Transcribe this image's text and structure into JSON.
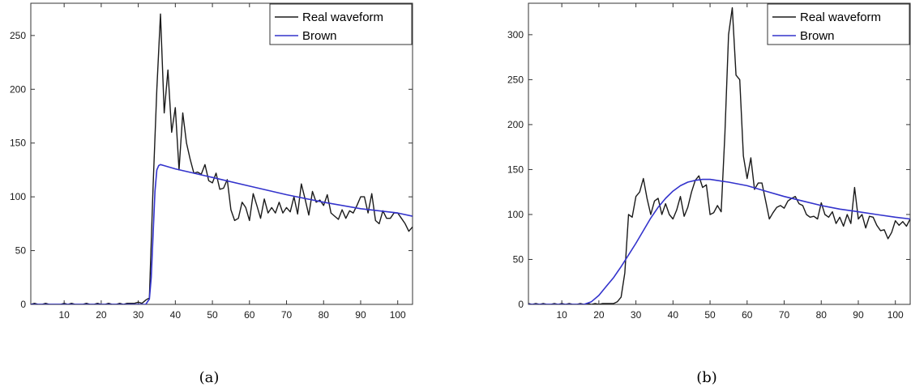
{
  "chart_data": [
    {
      "type": "line",
      "caption": "(a)",
      "xlim": [
        1,
        104
      ],
      "ylim": [
        0,
        280
      ],
      "xticks": [
        10,
        20,
        30,
        40,
        50,
        60,
        70,
        80,
        90,
        100
      ],
      "yticks": [
        0,
        50,
        100,
        150,
        200,
        250
      ],
      "legend_position": "top-right",
      "series": [
        {
          "name": "Real waveform",
          "color": "#1a1a1a",
          "x": [
            1,
            2,
            3,
            4,
            5,
            6,
            7,
            8,
            9,
            10,
            11,
            12,
            13,
            14,
            15,
            16,
            17,
            18,
            19,
            20,
            21,
            22,
            23,
            24,
            25,
            26,
            27,
            28,
            29,
            30,
            31,
            32,
            33,
            34,
            35,
            36,
            37,
            38,
            39,
            40,
            41,
            42,
            43,
            44,
            45,
            46,
            47,
            48,
            49,
            50,
            51,
            52,
            53,
            54,
            55,
            56,
            57,
            58,
            59,
            60,
            61,
            62,
            63,
            64,
            65,
            66,
            67,
            68,
            69,
            70,
            71,
            72,
            73,
            74,
            75,
            76,
            77,
            78,
            79,
            80,
            81,
            82,
            83,
            84,
            85,
            86,
            87,
            88,
            89,
            90,
            91,
            92,
            93,
            94,
            95,
            96,
            97,
            98,
            99,
            100,
            101,
            102,
            103,
            104
          ],
          "y": [
            0,
            1,
            0,
            0,
            1,
            0,
            0,
            0,
            0,
            1,
            0,
            1,
            0,
            0,
            0,
            1,
            0,
            0,
            1,
            0,
            0,
            1,
            0,
            0,
            1,
            0,
            1,
            1,
            1,
            2,
            1,
            4,
            6,
            110,
            200,
            270,
            178,
            218,
            160,
            183,
            125,
            178,
            150,
            135,
            122,
            123,
            121,
            130,
            115,
            113,
            122,
            107,
            108,
            116,
            88,
            78,
            80,
            95,
            90,
            78,
            103,
            92,
            80,
            98,
            85,
            90,
            85,
            95,
            85,
            90,
            86,
            100,
            84,
            112,
            98,
            83,
            105,
            95,
            97,
            92,
            102,
            85,
            82,
            79,
            88,
            80,
            87,
            85,
            92,
            100,
            100,
            85,
            103,
            78,
            75,
            87,
            80,
            80,
            85,
            85,
            80,
            75,
            68,
            72
          ]
        },
        {
          "name": "Brown",
          "color": "#3333cc",
          "x": [
            1,
            31,
            32,
            33,
            33.5,
            34,
            34.5,
            35,
            35.5,
            36,
            37,
            40,
            50,
            60,
            70,
            80,
            90,
            100,
            104
          ],
          "y": [
            0,
            0,
            0,
            5,
            25,
            65,
            105,
            125,
            129,
            130,
            129,
            126,
            118,
            110,
            102,
            95,
            89,
            85,
            82
          ]
        }
      ]
    },
    {
      "type": "line",
      "caption": "(b)",
      "xlim": [
        1,
        104
      ],
      "ylim": [
        0,
        335
      ],
      "xticks": [
        10,
        20,
        30,
        40,
        50,
        60,
        70,
        80,
        90,
        100
      ],
      "yticks": [
        0,
        50,
        100,
        150,
        200,
        250,
        300
      ],
      "legend_position": "top-right",
      "series": [
        {
          "name": "Real waveform",
          "color": "#1a1a1a",
          "x": [
            1,
            2,
            3,
            4,
            5,
            6,
            7,
            8,
            9,
            10,
            11,
            12,
            13,
            14,
            15,
            16,
            17,
            18,
            19,
            20,
            21,
            22,
            23,
            24,
            25,
            26,
            27,
            28,
            29,
            30,
            31,
            32,
            33,
            34,
            35,
            36,
            37,
            38,
            39,
            40,
            41,
            42,
            43,
            44,
            45,
            46,
            47,
            48,
            49,
            50,
            51,
            52,
            53,
            54,
            55,
            56,
            57,
            58,
            59,
            60,
            61,
            62,
            63,
            64,
            65,
            66,
            67,
            68,
            69,
            70,
            71,
            72,
            73,
            74,
            75,
            76,
            77,
            78,
            79,
            80,
            81,
            82,
            83,
            84,
            85,
            86,
            87,
            88,
            89,
            90,
            91,
            92,
            93,
            94,
            95,
            96,
            97,
            98,
            99,
            100,
            101,
            102,
            103,
            104
          ],
          "y": [
            1,
            0,
            1,
            0,
            1,
            0,
            0,
            1,
            0,
            1,
            0,
            1,
            0,
            0,
            1,
            0,
            1,
            0,
            1,
            0,
            1,
            1,
            1,
            1,
            3,
            8,
            35,
            100,
            97,
            120,
            125,
            140,
            118,
            100,
            115,
            118,
            100,
            112,
            100,
            95,
            105,
            120,
            98,
            108,
            125,
            138,
            143,
            130,
            133,
            100,
            102,
            110,
            103,
            190,
            300,
            330,
            255,
            250,
            165,
            140,
            163,
            128,
            135,
            135,
            115,
            95,
            102,
            108,
            110,
            107,
            115,
            118,
            120,
            112,
            110,
            100,
            97,
            98,
            95,
            113,
            100,
            97,
            103,
            90,
            97,
            87,
            100,
            90,
            130,
            95,
            100,
            85,
            98,
            97,
            88,
            82,
            83,
            73,
            80,
            93,
            88,
            92,
            87,
            95
          ]
        },
        {
          "name": "Brown",
          "color": "#3333cc",
          "x": [
            1,
            16,
            18,
            20,
            22,
            24,
            26,
            28,
            30,
            32,
            34,
            36,
            38,
            40,
            42,
            44,
            46,
            48,
            50,
            55,
            60,
            65,
            70,
            75,
            80,
            85,
            90,
            95,
            100,
            104
          ],
          "y": [
            0,
            0,
            3,
            10,
            20,
            30,
            42,
            55,
            68,
            82,
            96,
            108,
            118,
            126,
            132,
            136,
            138,
            139,
            139,
            136,
            132,
            126,
            120,
            115,
            110,
            106,
            103,
            100,
            97,
            95
          ]
        }
      ]
    }
  ]
}
